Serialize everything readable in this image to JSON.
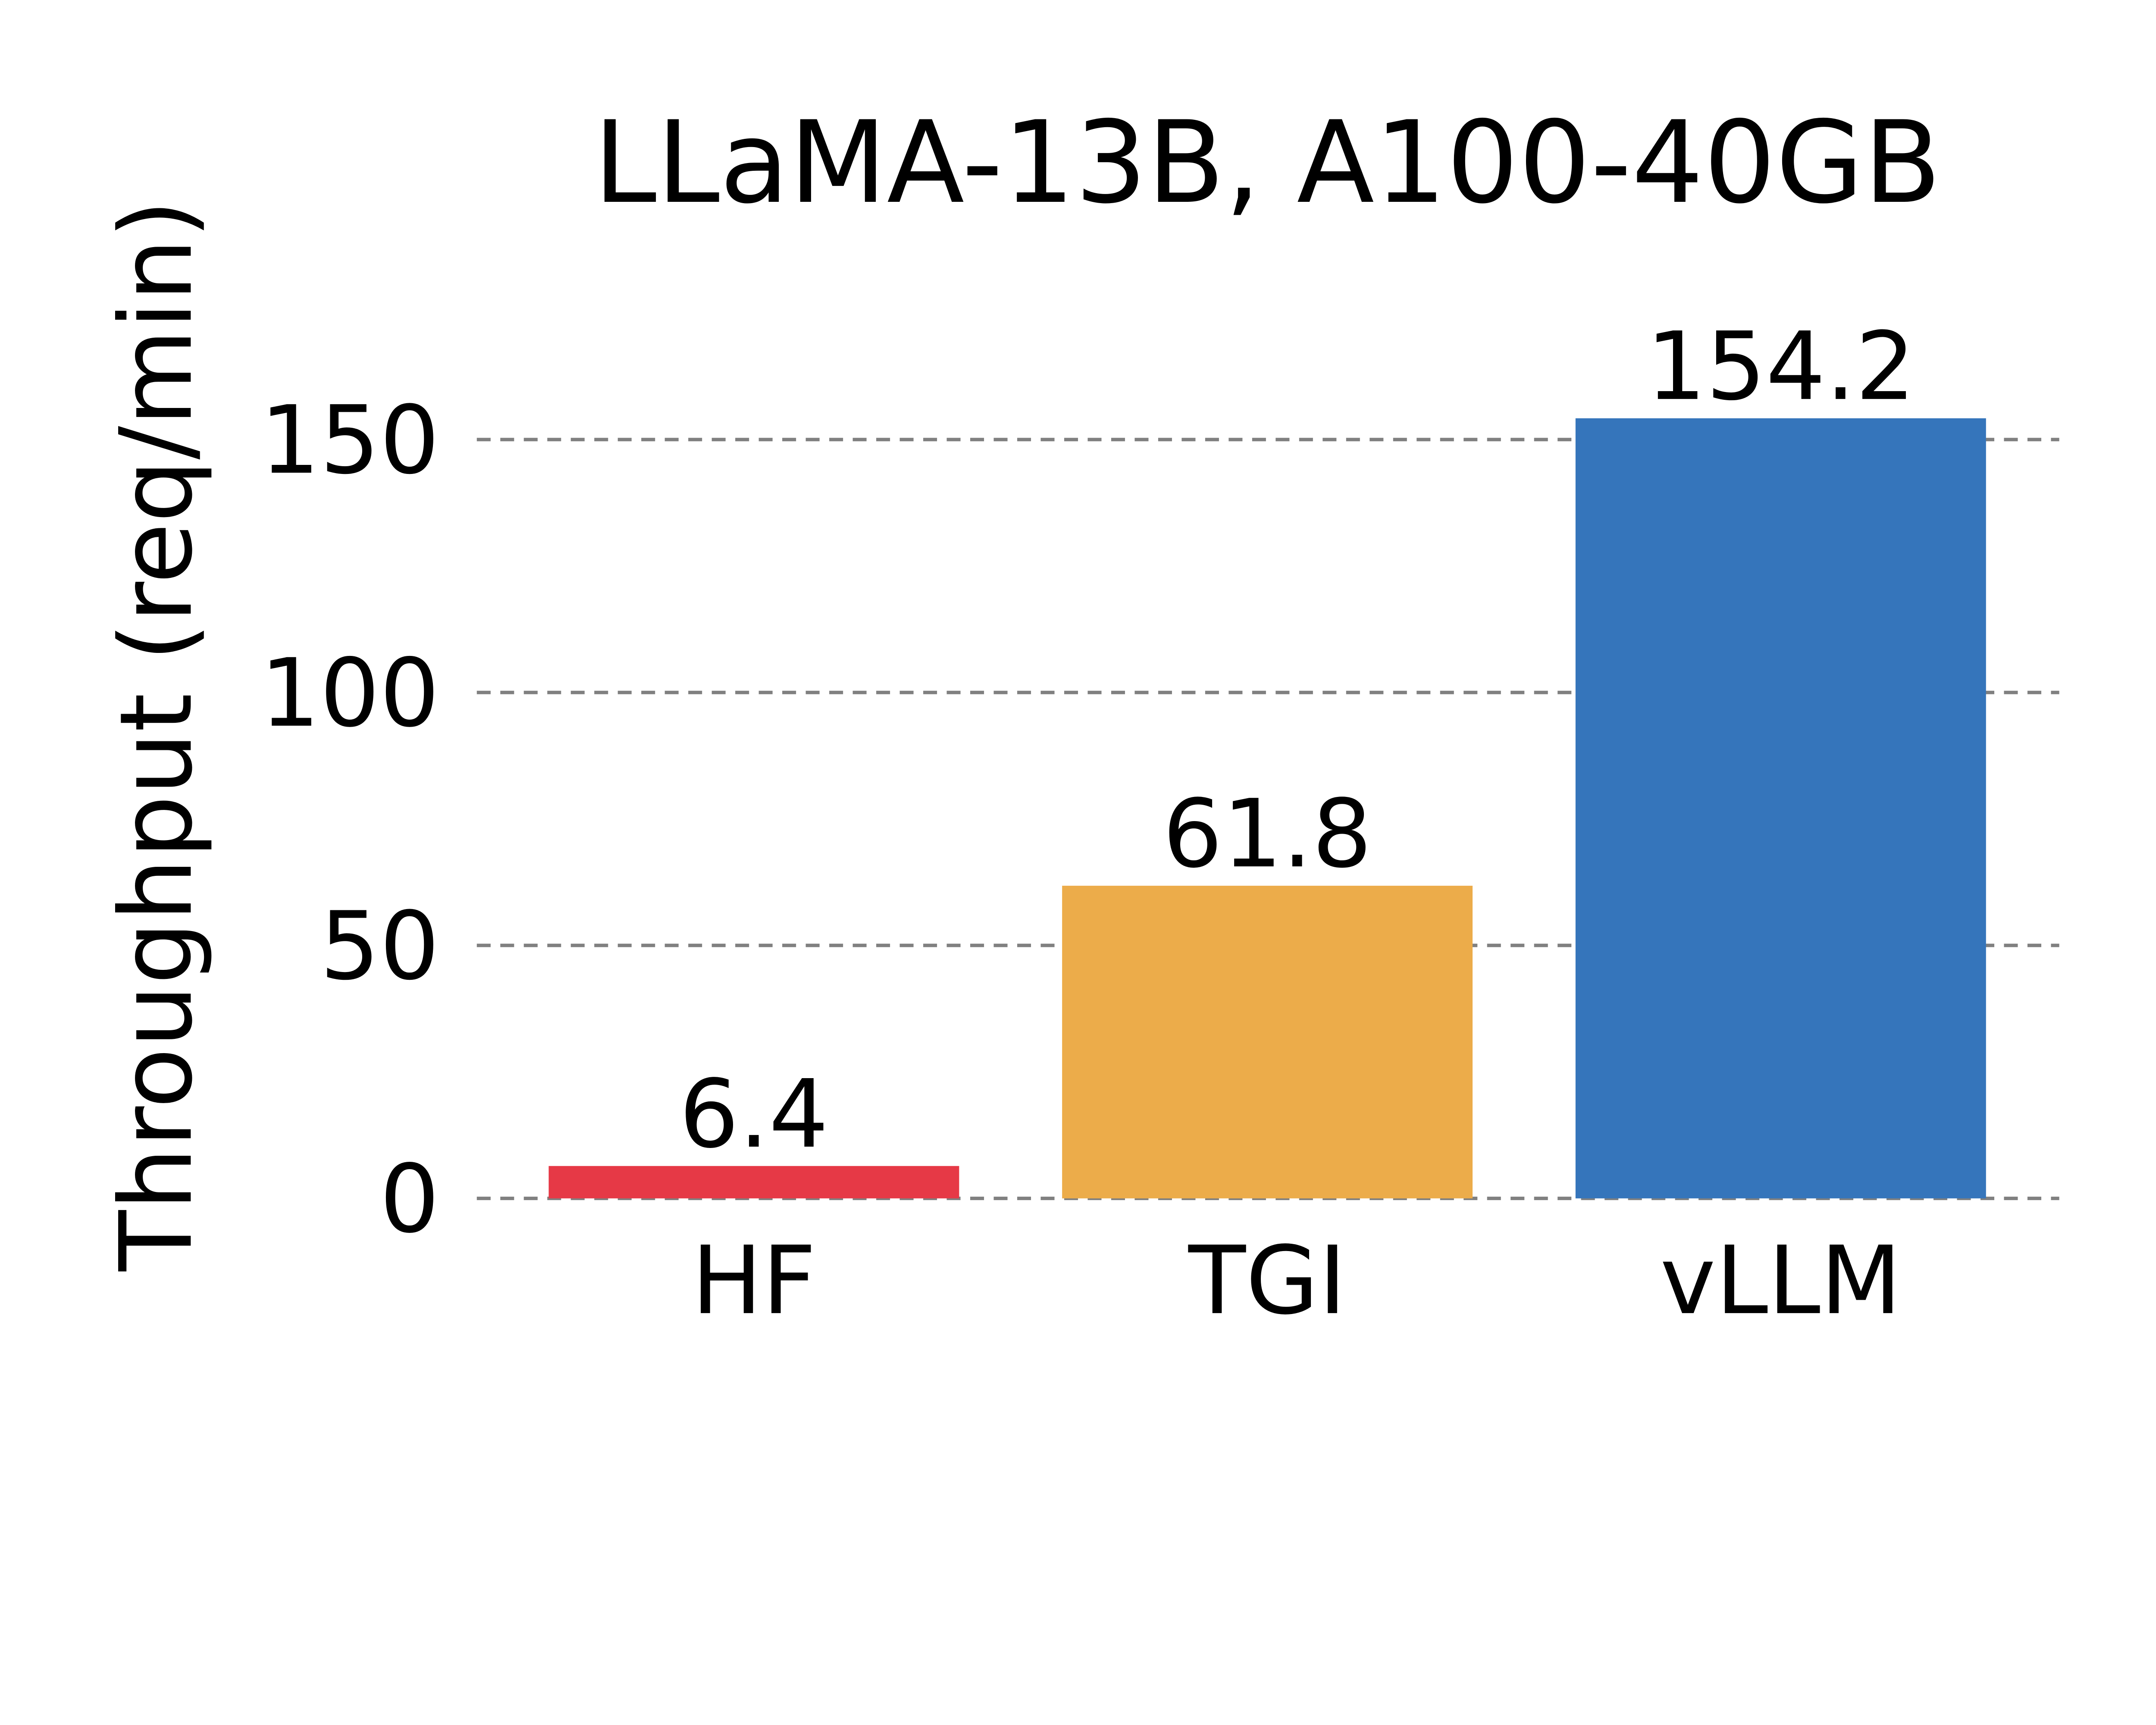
{
  "chart_data": {
    "type": "bar",
    "title": "LLaMA-13B, A100-40GB",
    "xlabel": "",
    "ylabel": "Throughput (req/min)",
    "categories": [
      "HF",
      "TGI",
      "vLLM"
    ],
    "values": [
      6.4,
      61.8,
      154.2
    ],
    "value_labels": [
      "6.4",
      "61.8",
      "154.2"
    ],
    "colors": [
      "#E63946",
      "#ECAC4A",
      "#3575BB"
    ],
    "ylim": [
      0,
      165
    ],
    "yticks": [
      0,
      50,
      100,
      150
    ],
    "ytick_labels": [
      "0",
      "50",
      "100",
      "150"
    ],
    "grid": "horizontal dashed",
    "grid_color": "#808080",
    "legend": "none"
  }
}
